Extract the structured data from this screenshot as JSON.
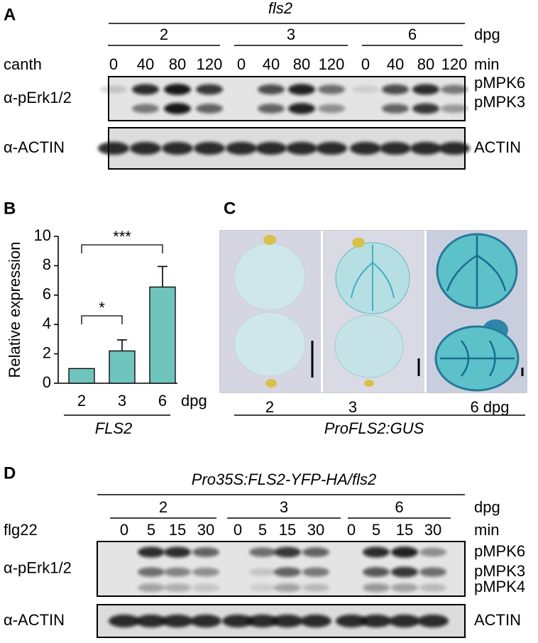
{
  "panels": {
    "a": {
      "label": "A",
      "genotype": "fls2",
      "dpg_groups": [
        "2",
        "3",
        "6"
      ],
      "dpg_unit": "dpg",
      "treatment": "canth",
      "time_unit": "min",
      "timepoints": [
        "0",
        "40",
        "80",
        "120",
        "0",
        "40",
        "80",
        "120",
        "0",
        "40",
        "80",
        "120"
      ],
      "blot_antibody": "α-pErk1/2",
      "bands": [
        "pMPK6",
        "pMPK3"
      ],
      "loading_antibody": "α-ACTIN",
      "loading_band": "ACTIN"
    },
    "c": {
      "label": "C",
      "stages": [
        "2",
        "3",
        "6 dpg"
      ],
      "reporter": "ProFLS2:GUS"
    },
    "d": {
      "label": "D",
      "genotype": "Pro35S:FLS2-YFP-HA/fls2",
      "dpg_groups": [
        "2",
        "3",
        "6"
      ],
      "dpg_unit": "dpg",
      "treatment": "flg22",
      "time_unit": "min",
      "timepoints": [
        "0",
        "5",
        "15",
        "30",
        "0",
        "5",
        "15",
        "30",
        "0",
        "5",
        "15",
        "30"
      ],
      "blot_antibody": "α-pErk1/2",
      "bands": [
        "pMPK6",
        "pMPK3",
        "pMPK4"
      ],
      "loading_antibody": "α-ACTIN",
      "loading_band": "ACTIN"
    }
  },
  "chart_data": {
    "type": "bar",
    "panel_label": "B",
    "y_label": "Relative expression",
    "categories": [
      "2",
      "3",
      "6"
    ],
    "x_unit": "dpg",
    "gene_label": "FLS2",
    "values": [
      1,
      2.2,
      6.55
    ],
    "errors": [
      0,
      0.75,
      1.4
    ],
    "color": "#6fc5bd",
    "ylim": [
      0,
      10
    ],
    "yticks": [
      0,
      2,
      4,
      6,
      8,
      10
    ],
    "significance": [
      "*",
      "***"
    ]
  }
}
